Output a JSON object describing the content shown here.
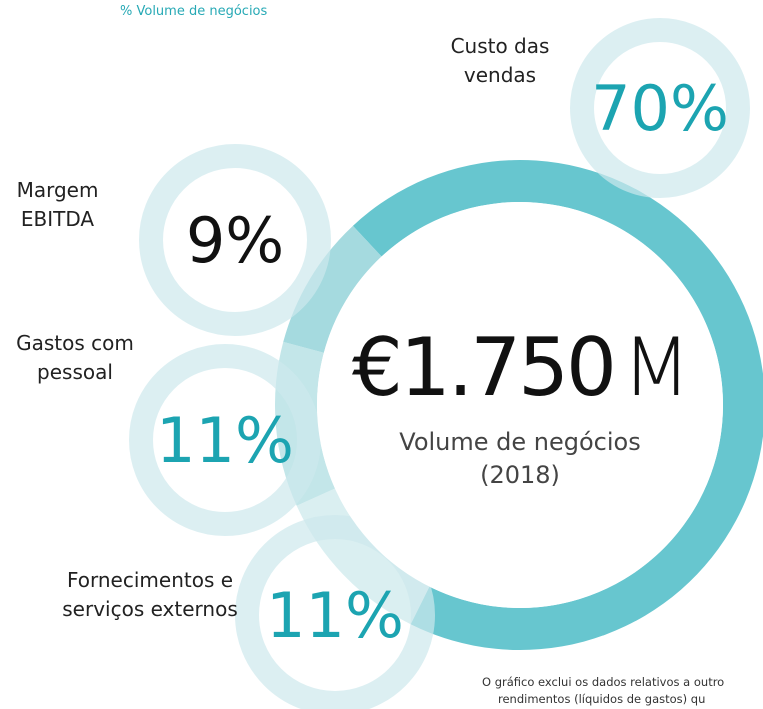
{
  "chart_data": {
    "type": "donut",
    "subtitle": "% Volume de negócios",
    "categories": [
      "Custo das vendas",
      "Fornecimentos e serviços externos",
      "Gastos com pessoal",
      "Margem EBITDA"
    ],
    "values": [
      70,
      11,
      11,
      9
    ],
    "value_labels": [
      "70%",
      "11%",
      "11%",
      "9%"
    ],
    "colors": [
      "#67c6cf",
      "#daeff1",
      "#c3e6e9",
      "#a5dadf"
    ],
    "center_value": "€1.750",
    "center_unit": "M",
    "center_label": "Volume de negócios",
    "center_sublabel": "(2018)",
    "note": [
      "O gráfico exclui os dados relativos a outro",
      "rendimentos (líquidos de gastos) qu"
    ]
  }
}
